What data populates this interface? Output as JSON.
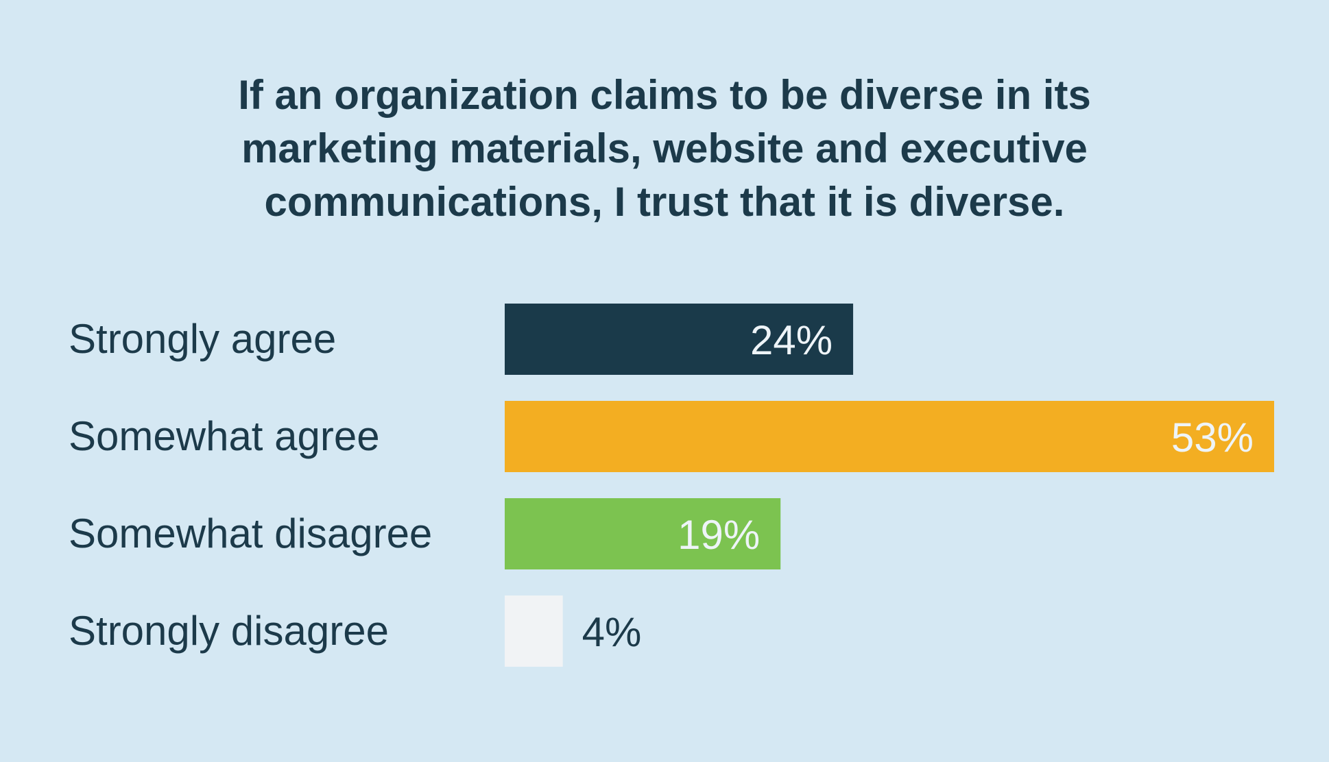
{
  "chart_data": {
    "type": "bar",
    "orientation": "horizontal",
    "title": "If an organization claims to be diverse in its marketing materials, website and executive communications, I trust that it is diverse.",
    "categories": [
      "Strongly agree",
      "Somewhat agree",
      "Somewhat disagree",
      "Strongly disagree"
    ],
    "values": [
      24,
      53,
      19,
      4
    ],
    "value_labels": [
      "24%",
      "53%",
      "19%",
      "4%"
    ],
    "colors": [
      "#1a3a4a",
      "#f3ae22",
      "#7cc350",
      "#f1f3f5"
    ],
    "label_colors": [
      "#eef4f8",
      "#eef4f8",
      "#eef4f8",
      "#1c3a4a"
    ],
    "xlim": [
      0,
      53
    ],
    "grid": false,
    "legend": "none"
  }
}
